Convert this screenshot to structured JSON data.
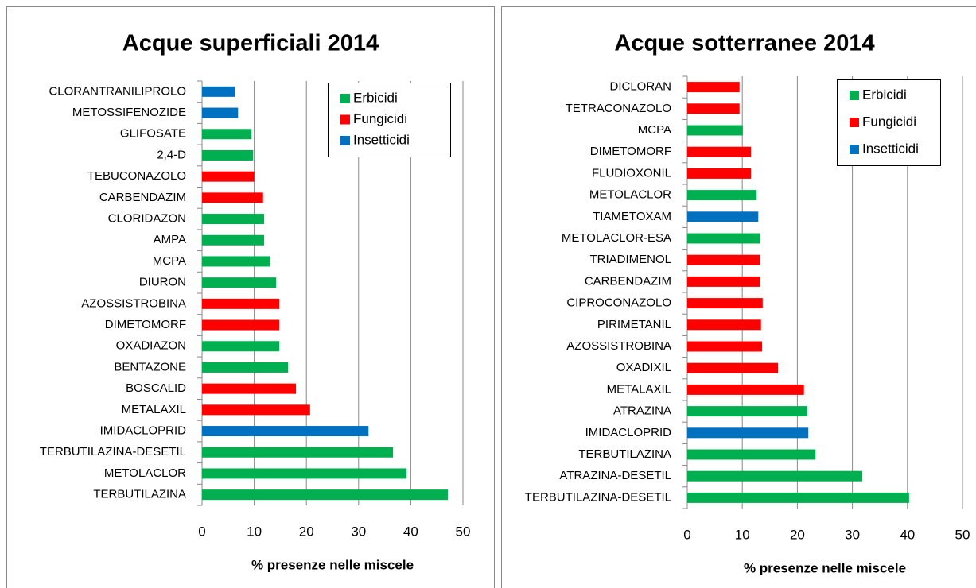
{
  "chart_data": [
    {
      "type": "bar",
      "orientation": "horizontal",
      "title": "Acque superficiali 2014",
      "x_label": "% presenze nelle miscele",
      "categories": [
        "CLORANTRANILIPROLO",
        "METOSSIFENOZIDE",
        "GLIFOSATE",
        "2,4-D",
        "TEBUCONAZOLO",
        "CARBENDAZIM",
        "CLORIDAZON",
        "AMPA",
        "MCPA",
        "DIURON",
        "AZOSSISTROBINA",
        "DIMETOMORF",
        "OXADIAZON",
        "BENTAZONE",
        "BOSCALID",
        "METALAXIL",
        "IMIDACLOPRID",
        "TERBUTILAZINA-DESETIL",
        "METOLACLOR",
        "TERBUTILAZINA"
      ],
      "series": [
        {
          "name": "Erbicidi",
          "color": "#00b050",
          "values": [
            null,
            null,
            9.5,
            9.8,
            null,
            null,
            11.9,
            11.9,
            13,
            14.2,
            null,
            null,
            14.8,
            16.5,
            null,
            null,
            null,
            36.6,
            39.2,
            47.1
          ]
        },
        {
          "name": "Fungicidi",
          "color": "#ff0000",
          "values": [
            null,
            null,
            null,
            null,
            10,
            11.7,
            null,
            null,
            null,
            null,
            14.8,
            14.8,
            null,
            null,
            18,
            20.7,
            null,
            null,
            null,
            null
          ]
        },
        {
          "name": "Insetticidi",
          "color": "#0070c0",
          "values": [
            6.4,
            6.9,
            null,
            null,
            null,
            null,
            null,
            null,
            null,
            null,
            null,
            null,
            null,
            null,
            null,
            null,
            31.9,
            null,
            null,
            null
          ]
        }
      ],
      "xlim": [
        0,
        50
      ],
      "xticks": [
        0,
        10,
        20,
        30,
        40,
        50
      ],
      "grid": true,
      "legend": "upper right"
    },
    {
      "type": "bar",
      "orientation": "horizontal",
      "title": "Acque sotterranee 2014",
      "x_label": "% presenze nelle miscele",
      "categories": [
        "DICLORAN",
        "TETRACONAZOLO",
        "MCPA",
        "DIMETOMORF",
        "FLUDIOXONIL",
        "METOLACLOR",
        "TIAMETOXAM",
        "METOLACLOR-ESA",
        "TRIADIMENOL",
        "CARBENDAZIM",
        "CIPROCONAZOLO",
        "PIRIMETANIL",
        "AZOSSISTROBINA",
        "OXADIXIL",
        "METALAXIL",
        "ATRAZINA",
        "IMIDACLOPRID",
        "TERBUTILAZINA",
        "ATRAZINA-DESETIL",
        "TERBUTILAZINA-DESETIL"
      ],
      "series": [
        {
          "name": "Erbicidi",
          "color": "#00b050",
          "values": [
            null,
            null,
            10.1,
            null,
            null,
            12.6,
            null,
            13.3,
            null,
            null,
            null,
            null,
            null,
            null,
            null,
            21.8,
            null,
            23.3,
            31.8,
            40.3
          ]
        },
        {
          "name": "Fungicidi",
          "color": "#ff0000",
          "values": [
            9.5,
            9.5,
            null,
            11.6,
            11.6,
            null,
            null,
            null,
            13.2,
            13.2,
            13.7,
            13.4,
            13.6,
            16.5,
            21.2,
            null,
            null,
            null,
            null,
            null
          ]
        },
        {
          "name": "Insetticidi",
          "color": "#0070c0",
          "values": [
            null,
            null,
            null,
            null,
            null,
            null,
            12.9,
            null,
            null,
            null,
            null,
            null,
            null,
            null,
            null,
            null,
            22,
            null,
            null,
            null
          ]
        }
      ],
      "xlim": [
        0,
        50
      ],
      "xticks": [
        0,
        10,
        20,
        30,
        40,
        50
      ],
      "grid": true,
      "legend": "upper right"
    }
  ]
}
